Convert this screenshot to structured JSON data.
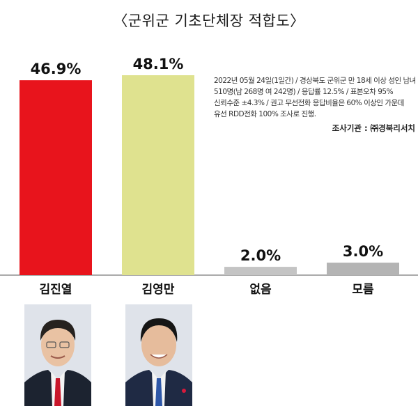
{
  "title": "〈군위군 기초단체장 적합도〉",
  "note": "2022년 05월 24일(1일간) / 경상북도 군위군 만 18세 이상 성인 남녀 510명(남 268명 여 242명) / 응답률 12.5% / 표본오차 95% 신뢰수준 ±4.3% / 권고 무선전화 응답비율은 60% 이상인 가운데 유선 RDD전화 100% 조사로 진행.",
  "source": "조사기관 : ㈜경북리서치",
  "colors": {
    "red": "#e8141c",
    "yellow": "#dfe28f",
    "gray": "#c4c4c4"
  },
  "chart_data": {
    "type": "bar",
    "categories": [
      "김진열",
      "김영만",
      "없음",
      "모름"
    ],
    "values": [
      46.9,
      48.1,
      2.0,
      3.0
    ],
    "value_labels": [
      "46.9%",
      "48.1%",
      "2.0%",
      "3.0%"
    ],
    "bar_colors": [
      "#e8141c",
      "#dfe28f",
      "#c4c4c4",
      "#b4b4b4"
    ],
    "title": "〈군위군 기초단체장 적합도〉",
    "xlabel": "",
    "ylabel": "",
    "grid": false
  }
}
